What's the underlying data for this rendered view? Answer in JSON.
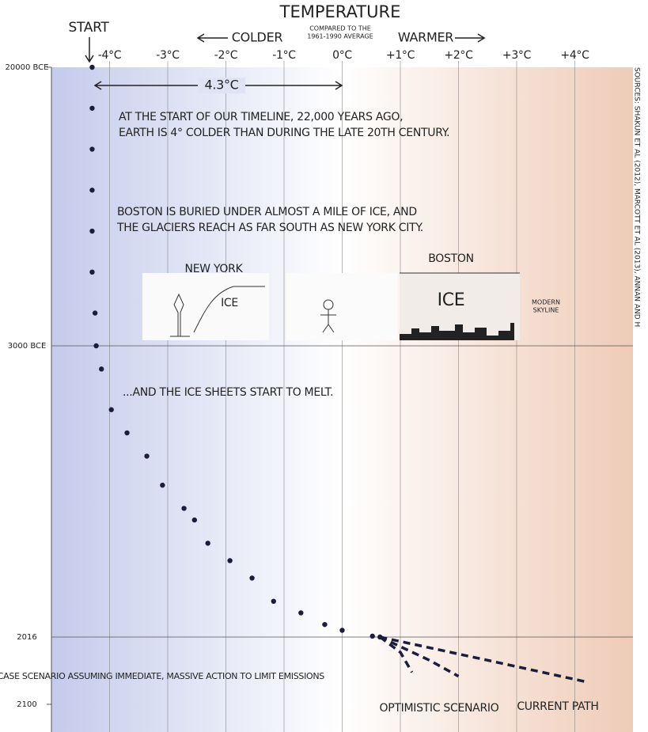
{
  "chart_data": {
    "type": "line",
    "title": "TEMPERATURE",
    "subtitle_1": "COMPARED TO THE",
    "subtitle_2": "1961-1990 AVERAGE",
    "colder_label": "COLDER",
    "warmer_label": "WARMER",
    "start_label": "START",
    "difference_label": "4.3°C",
    "sources": "SOURCES: SHAKUN ET AL (2012), MARCOTT ET AL (2013), ANNAN AND H",
    "annotations": [
      "AT THE START OF OUR TIMELINE, 22,000 YEARS AGO,",
      "EARTH IS 4° COLDER THAN DURING THE LATE 20TH CENTURY.",
      "BOSTON IS BURIED UNDER ALMOST A MILE OF ICE, AND",
      "THE GLACIERS REACH AS FAR SOUTH AS NEW YORK CITY.",
      "NEW YORK",
      "ICE",
      "BOSTON",
      "ICE",
      "MODERN",
      "SKYLINE",
      "...AND THE ICE SHEETS START TO MELT."
    ],
    "xlim": [
      -5,
      5
    ],
    "xticks": [
      {
        "value": -4,
        "label": "-4°C"
      },
      {
        "value": -3,
        "label": "-3°C"
      },
      {
        "value": -2,
        "label": "-2°C"
      },
      {
        "value": -1,
        "label": "-1°C"
      },
      {
        "value": 0,
        "label": "0°C"
      },
      {
        "value": 1,
        "label": "+1°C"
      },
      {
        "value": 2,
        "label": "+2°C"
      },
      {
        "value": 3,
        "label": "+3°C"
      },
      {
        "value": 4,
        "label": "+4°C"
      }
    ],
    "yticks": [
      {
        "value": -20000,
        "label": "20000 BCE"
      },
      {
        "value": -3000,
        "label": "3000 BCE"
      },
      2016,
      2100
    ],
    "series": [
      {
        "color": "#1c1c3c",
        "style": "dots",
        "x": [
          -4.3,
          -4.3,
          -4.3,
          -4.3,
          -4.3,
          -4.3,
          -4.25,
          -4.23,
          -4.14,
          -3.97,
          -3.7,
          -3.36,
          -3.09,
          -2.72,
          -2.54,
          -2.31,
          -1.93,
          -1.55,
          -1.18,
          -0.71,
          -0.3,
          0,
          0.52,
          0.65
        ],
        "values": [
          -20000,
          -17500,
          -15000,
          -12500,
          -10000,
          -7500,
          -5000,
          -3000,
          -2600,
          -1900,
          -1500,
          -1100,
          -600,
          -200,
          0,
          400,
          700,
          1000,
          1400,
          1600,
          1800,
          1900,
          2000,
          2016
        ]
      },
      {
        "name": "BEST-CASE SCENARIO ASSUMING IMMEDIATE, MASSIVE ACTION TO LIMIT EMISSIONS",
        "color": "#1c1c3c",
        "style": "dashed",
        "x": [
          0.65,
          1.0,
          1.2
        ],
        "values": [
          2016,
          2035,
          2060
        ]
      },
      {
        "name": "OPTIMISTIC SCENARIO",
        "color": "#1c1c3c",
        "style": "dashed",
        "x": [
          0.65,
          1.5,
          2.0
        ],
        "values": [
          2016,
          2045,
          2065
        ]
      },
      {
        "name": "CURRENT PATH",
        "color": "#1c1c3c",
        "style": "dashed",
        "x": [
          0.65,
          2.5,
          4.2
        ],
        "values": [
          2016,
          2045,
          2072
        ]
      }
    ]
  }
}
